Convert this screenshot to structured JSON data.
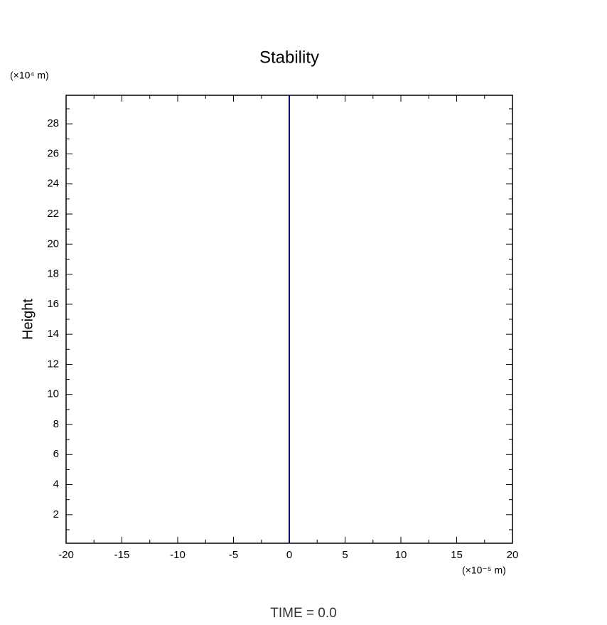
{
  "chart_data": {
    "type": "line",
    "title": "Stability",
    "ylabel": "Height",
    "yunit": "(×10⁴ m)",
    "xunit": "(×10⁻⁵ m)",
    "annotation": "TIME = 0.0",
    "xlim": [
      -20,
      20
    ],
    "xticks": [
      -20,
      -15,
      -10,
      -5,
      0,
      5,
      10,
      15,
      20
    ],
    "xminorticks": [
      -17.5,
      -12.5,
      -7.5,
      -2.5,
      2.5,
      7.5,
      12.5,
      17.5
    ],
    "ylim": [
      0.1,
      29.9
    ],
    "yticks": [
      2,
      4,
      6,
      8,
      10,
      12,
      14,
      16,
      18,
      20,
      22,
      24,
      26,
      28
    ],
    "yminorticks": [
      1,
      3,
      5,
      7,
      9,
      11,
      13,
      15,
      17,
      19,
      21,
      23,
      25,
      27,
      29
    ],
    "series": [
      {
        "color": "#000066",
        "x": [
          0,
          0
        ],
        "values": [
          0.1,
          29.9
        ]
      }
    ]
  }
}
